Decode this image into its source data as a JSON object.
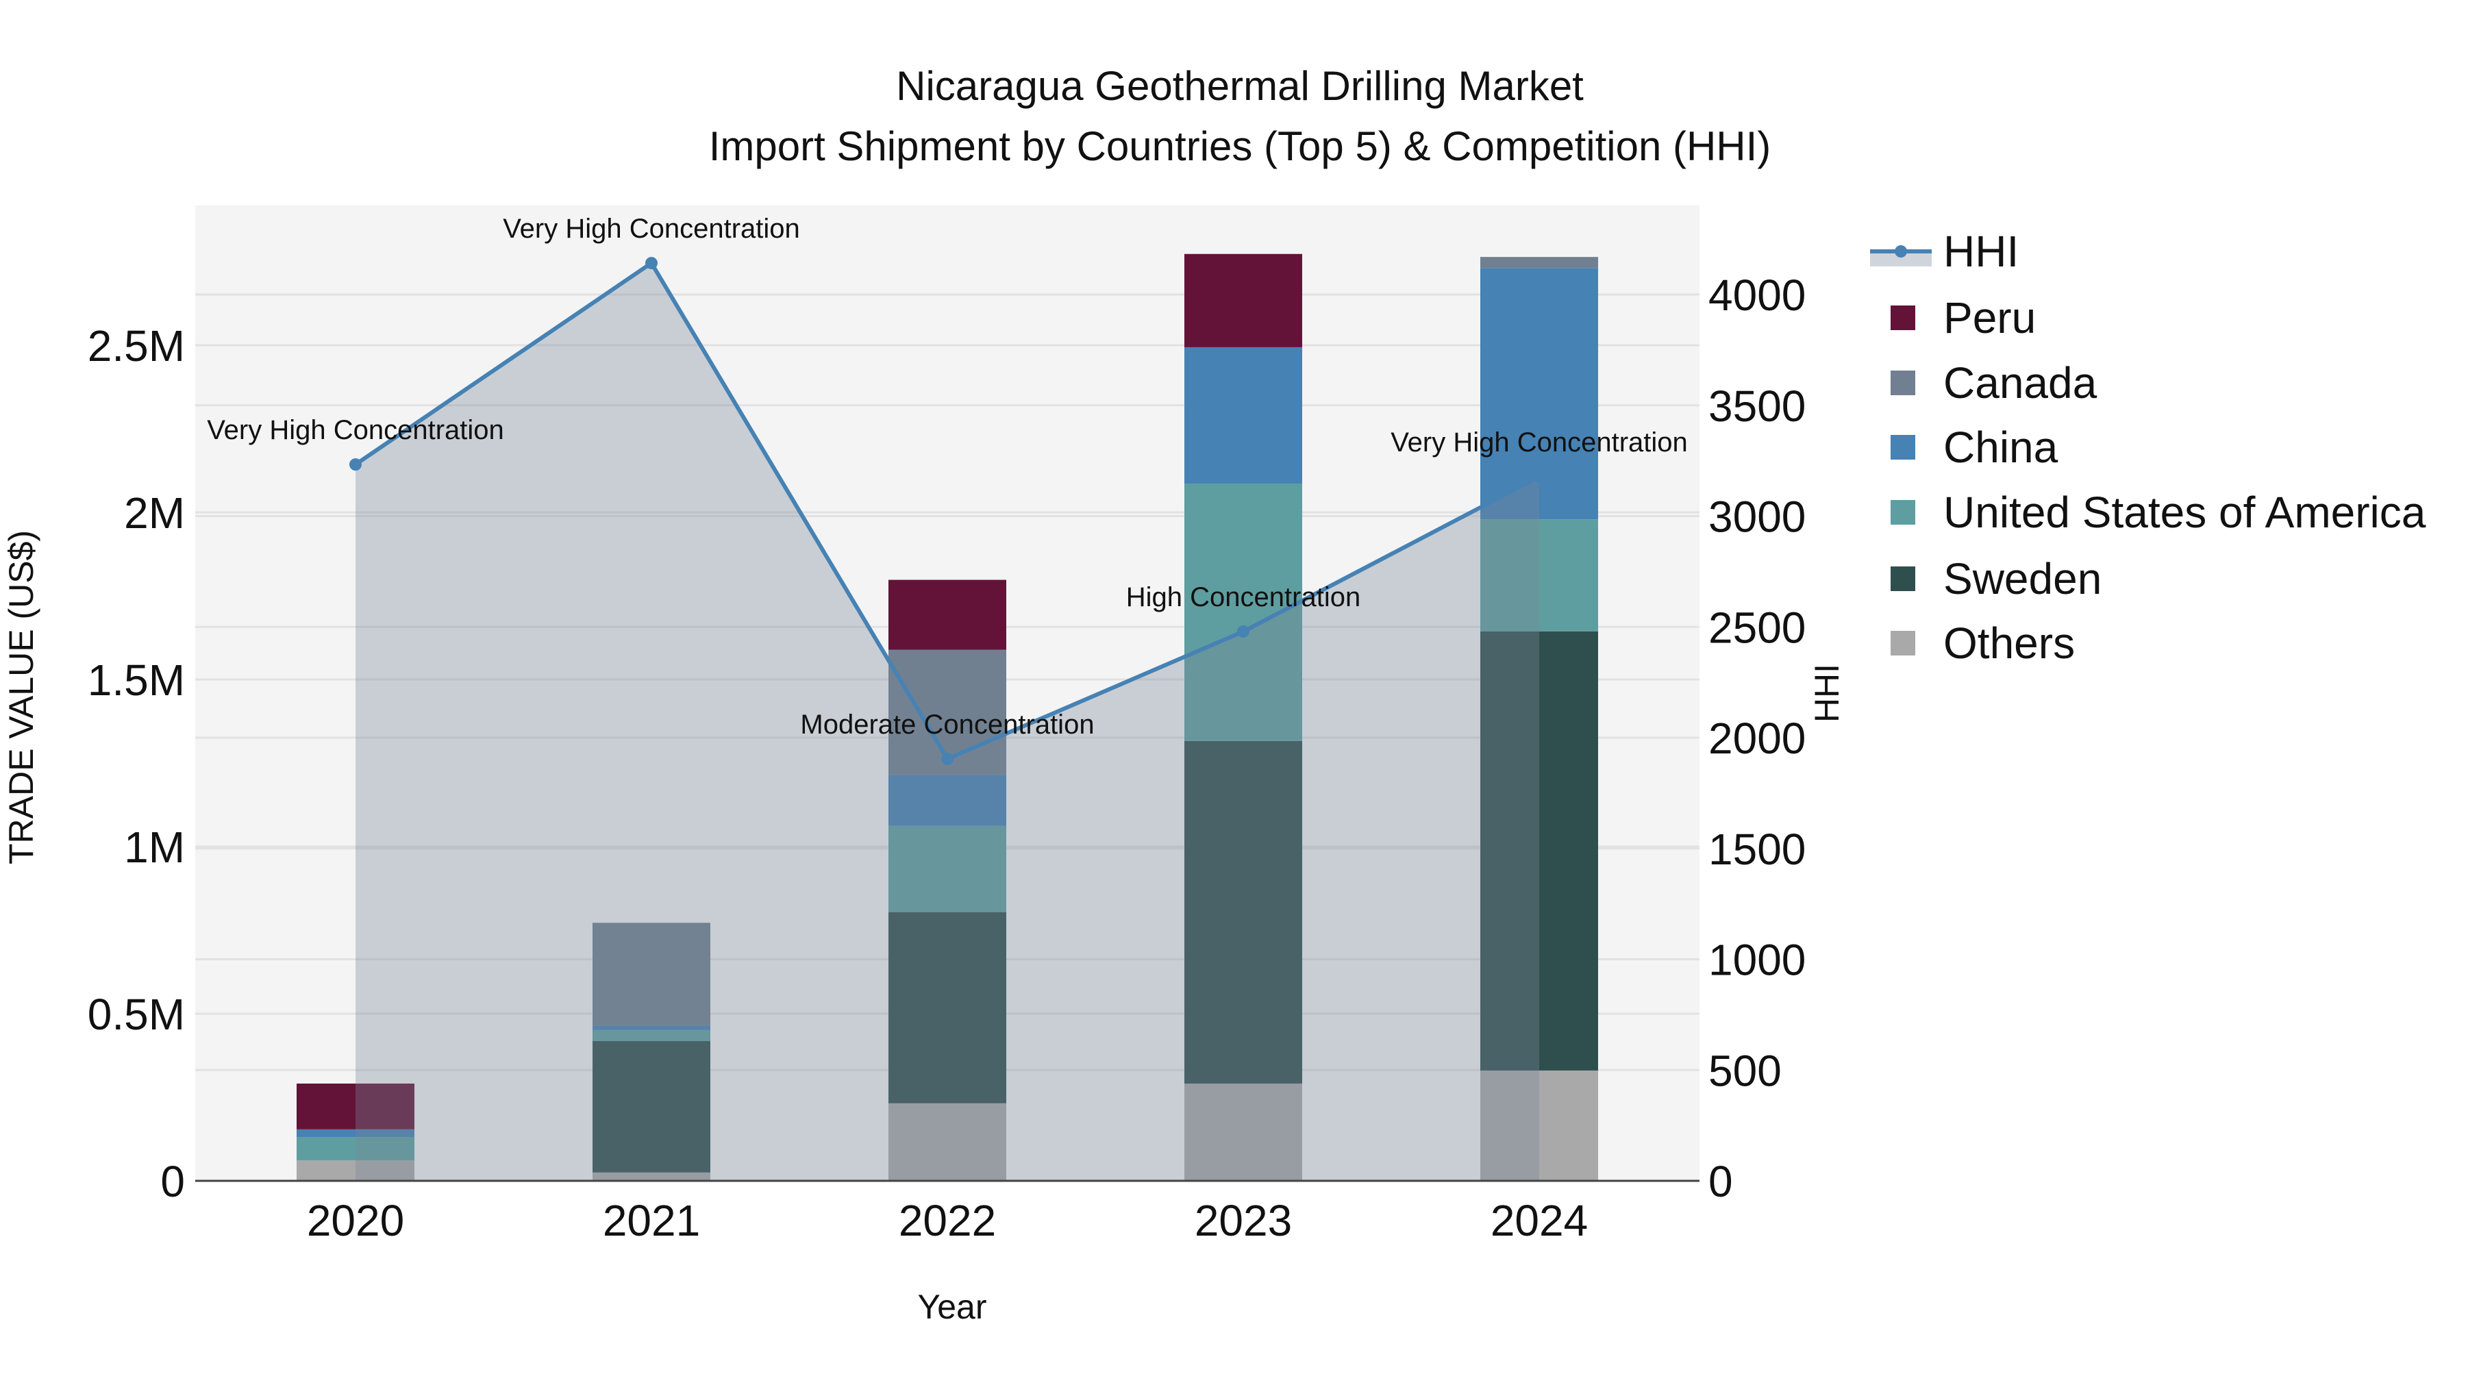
{
  "title": {
    "line1": "Nicaragua Geothermal Drilling Market",
    "line2": "Import Shipment by Countries (Top 5) & Competition (HHI)"
  },
  "axes": {
    "x_title": "Year",
    "y_left_title": "TRADE VALUE (US$)",
    "y_right_title": "HHI",
    "y_left_ticks": [
      "0",
      "0.5M",
      "1M",
      "1.5M",
      "2M",
      "2.5M"
    ],
    "y_right_ticks": [
      "0",
      "500",
      "1000",
      "1500",
      "2000",
      "2500",
      "3000",
      "3500",
      "4000"
    ],
    "x_ticks": [
      "2020",
      "2021",
      "2022",
      "2023",
      "2024"
    ]
  },
  "legend": {
    "items": [
      {
        "label": "HHI",
        "color": "#4682B4",
        "type": "line"
      },
      {
        "label": "Peru",
        "color": "#631337",
        "type": "bar"
      },
      {
        "label": "Canada",
        "color": "#708090",
        "type": "bar"
      },
      {
        "label": "China",
        "color": "#4682B4",
        "type": "bar"
      },
      {
        "label": "United States of America",
        "color": "#5F9EA0",
        "type": "bar"
      },
      {
        "label": "Sweden",
        "color": "#2F4F4F",
        "type": "bar"
      },
      {
        "label": "Others",
        "color": "#A9A9A9",
        "type": "bar"
      }
    ]
  },
  "colors": {
    "plot_bg": "#F4F4F4",
    "grid": "#E2E2E2",
    "hhi_line": "#4682B4",
    "hhi_area": "rgba(119,136,153,0.35)"
  },
  "chart_data": {
    "type": "bar",
    "title": "Nicaragua Geothermal Drilling Market — Import Shipment by Countries (Top 5) & Competition (HHI)",
    "xlabel": "Year",
    "ylabel": "TRADE VALUE (US$)",
    "y2label": "HHI",
    "stacked": true,
    "categories": [
      "2020",
      "2021",
      "2022",
      "2023",
      "2024"
    ],
    "ylim": [
      0,
      2920000
    ],
    "y2lim": [
      0,
      4400
    ],
    "grid": true,
    "legend_position": "right",
    "series": [
      {
        "name": "Others",
        "color": "#A9A9A9",
        "values": [
          61000,
          25000,
          232000,
          291000,
          330000
        ]
      },
      {
        "name": "Sweden",
        "color": "#2F4F4F",
        "values": [
          0,
          393000,
          572000,
          1025000,
          1314000
        ]
      },
      {
        "name": "United States of America",
        "color": "#5F9EA0",
        "values": [
          70000,
          33000,
          258000,
          770000,
          335000
        ]
      },
      {
        "name": "China",
        "color": "#4682B4",
        "values": [
          23000,
          14000,
          152000,
          408000,
          752000
        ]
      },
      {
        "name": "Canada",
        "color": "#708090",
        "values": [
          0,
          307000,
          375000,
          0,
          33000
        ]
      },
      {
        "name": "Peru",
        "color": "#631337",
        "values": [
          137000,
          0,
          209000,
          279000,
          0
        ]
      }
    ],
    "line_series": {
      "name": "HHI",
      "axis": "right",
      "color": "#4682B4",
      "fill": "tozeroy",
      "values": [
        3233,
        4142,
        1904,
        2479,
        3178
      ],
      "annotations": [
        "Very High Concentration",
        "Very High Concentration",
        "Moderate Concentration",
        "High Concentration",
        "Very High Concentration"
      ]
    }
  }
}
